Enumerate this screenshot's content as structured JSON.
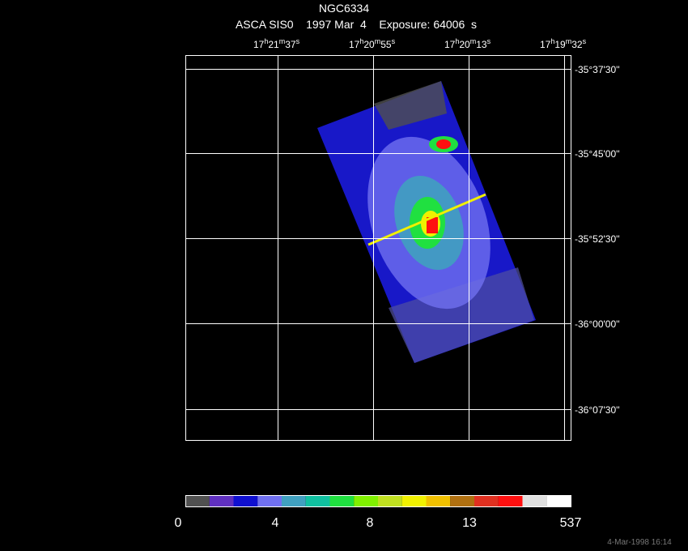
{
  "header": {
    "title": "NGC6334",
    "subtitle": "ASCA SIS0    1997 Mar  4    Exposure: 64006  s"
  },
  "ra_units": [
    "h",
    "m",
    "s"
  ],
  "ra_ticks": [
    [
      "17",
      "21",
      "37"
    ],
    [
      "17",
      "20",
      "55"
    ],
    [
      "17",
      "20",
      "13"
    ],
    [
      "17",
      "19",
      "32"
    ]
  ],
  "dec_ticks": [
    "-35°37'30''",
    "-35°45'00''",
    "-35°52'30''",
    "-36°00'00''",
    "-36°07'30''"
  ],
  "colorbar": {
    "colors": [
      "#505050",
      "#6030c0",
      "#1010d0",
      "#7070f0",
      "#40a0c0",
      "#10c0a0",
      "#20e040",
      "#80f000",
      "#c0e020",
      "#f0f000",
      "#f0c000",
      "#b07010",
      "#e03020",
      "#ff1010",
      "#e0e0e0",
      "#ffffff"
    ],
    "labels": [
      "0",
      "4",
      "8",
      "13",
      "537"
    ]
  },
  "footer": "4-Mar-1998 16:14"
}
